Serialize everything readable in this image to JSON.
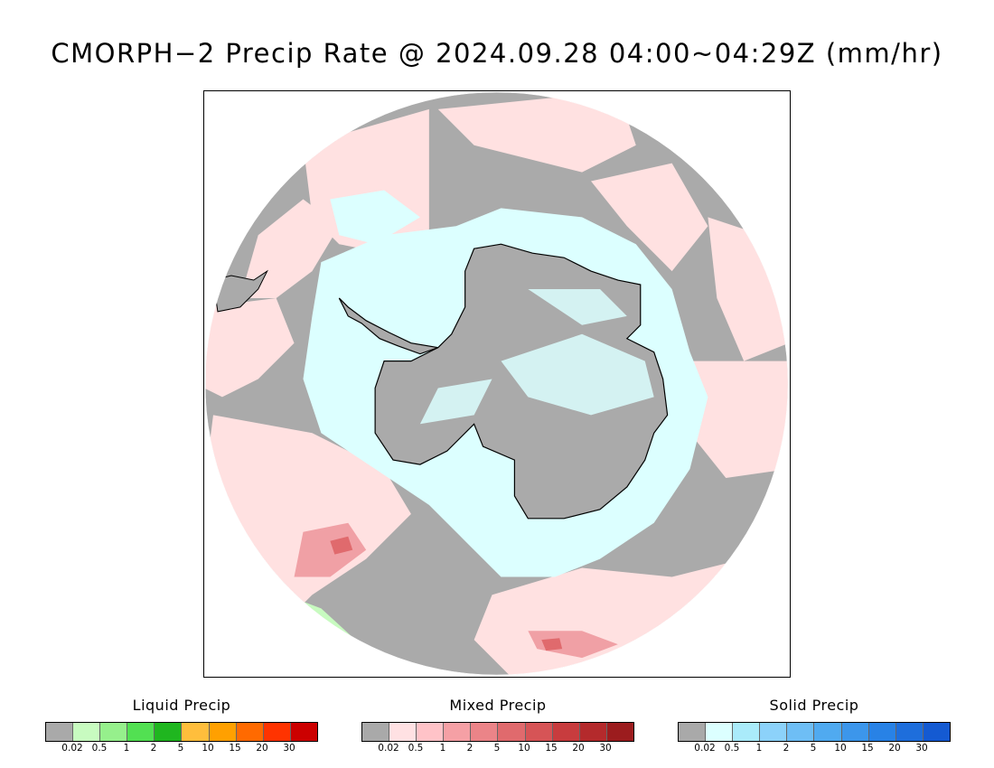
{
  "title": "CMORPH−2 Precip Rate @ 2024.09.28 04:00~04:29Z (mm/hr)",
  "map": {
    "projection": "south-polar-stereographic",
    "background_color": "#aaaaaa",
    "coastline_color": "#000000"
  },
  "legends": [
    {
      "title": "Liquid Precip",
      "colors": [
        "#a9a9a9",
        "#c8fbc0",
        "#96f08c",
        "#52e052",
        "#1fb61f",
        "#ffbe3c",
        "#ffa000",
        "#ff6a00",
        "#ff3300",
        "#cc0000"
      ],
      "ticks": [
        "0.02",
        "0.5",
        "1",
        "2",
        "5",
        "10",
        "15",
        "20",
        "30"
      ]
    },
    {
      "title": "Mixed Precip",
      "colors": [
        "#a9a9a9",
        "#ffe1e3",
        "#ffc3c8",
        "#f5a0a5",
        "#eb8488",
        "#e06a6d",
        "#d65456",
        "#c83c3e",
        "#b42a2c",
        "#9c1c1e"
      ],
      "ticks": [
        "0.02",
        "0.5",
        "1",
        "2",
        "5",
        "10",
        "15",
        "20",
        "30"
      ]
    },
    {
      "title": "Solid Precip",
      "colors": [
        "#a9a9a9",
        "#dcffff",
        "#aaebfa",
        "#8cd2fa",
        "#6ebef5",
        "#50aaf0",
        "#3c96eb",
        "#2882e6",
        "#1e6edc",
        "#145ad2"
      ],
      "ticks": [
        "0.02",
        "0.5",
        "1",
        "2",
        "5",
        "10",
        "15",
        "20",
        "30"
      ]
    }
  ]
}
